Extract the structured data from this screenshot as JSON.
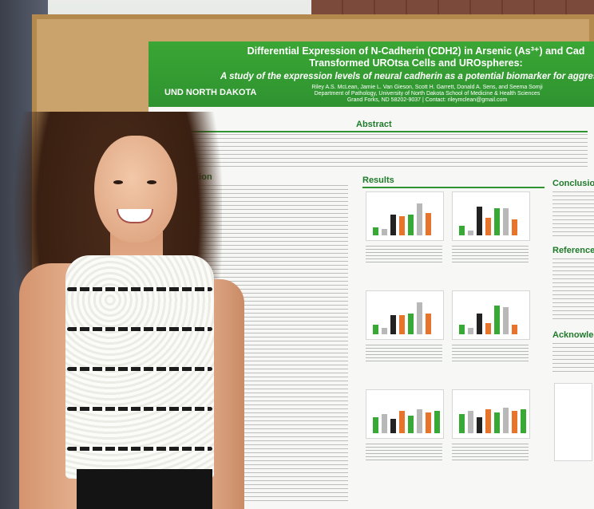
{
  "poster": {
    "title_line1": "Differential Expression of N-Cadherin (CDH2) in Arsenic (As³⁺) and Cad",
    "title_line2": "Transformed UROtsa Cells and UROspheres:",
    "subtitle": "A study of the expression levels of neural cadherin as a potential biomarker for aggress",
    "authors": "Riley A.S. McLean, Jamie L. Van Gieson, Scott H. Garrett, Donald A. Sens, and Seema Somji\nDepartment of Pathology, University of North Dakota School of Medicine & Health Sciences\nGrand Forks, ND 58202-9037 | Contact: rileymclean@gmail.com",
    "logo": "UND NORTH DAKOTA",
    "sections": {
      "abstract": "Abstract",
      "introduction": "duction",
      "results": "Results",
      "conclusion": "Conclusion",
      "references": "Reference",
      "acknowledgements": "Acknowled"
    }
  },
  "colors": {
    "header_green": "#2f9330",
    "bar_dark": "#222222",
    "bar_orange": "#e8732a",
    "bar_green": "#39a935",
    "bar_gray": "#b8b8b8"
  }
}
